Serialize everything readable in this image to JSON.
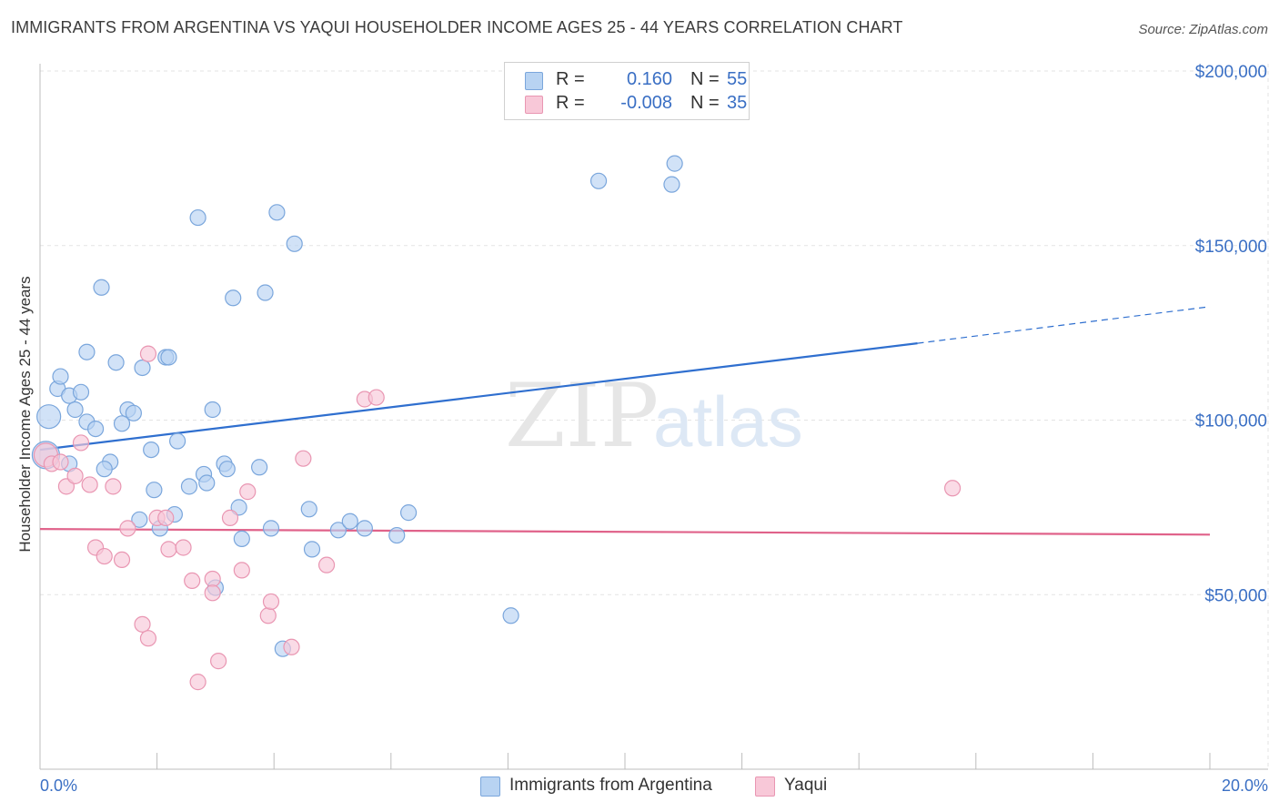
{
  "title": "IMMIGRANTS FROM ARGENTINA VS YAQUI HOUSEHOLDER INCOME AGES 25 - 44 YEARS CORRELATION CHART",
  "source": "Source: ZipAtlas.com",
  "watermark": {
    "zip": "ZIP",
    "atlas": "atlas"
  },
  "colors": {
    "blue_fill": "#b8d3f2",
    "blue_stroke": "#7aa6dc",
    "blue_line": "#2f6fcf",
    "pink_fill": "#f8c8d8",
    "pink_stroke": "#e996b2",
    "pink_line": "#e0628a",
    "axis_label": "#3a6fc4",
    "grid": "#e3e3e3"
  },
  "legend_top": {
    "rows": [
      {
        "r_label": "R =",
        "r_value": "0.160",
        "n_label": "N =",
        "n_value": "55"
      },
      {
        "r_label": "R =",
        "r_value": "-0.008",
        "n_label": "N =",
        "n_value": "35"
      }
    ]
  },
  "legend_bottom": {
    "series1": "Immigrants from Argentina",
    "series2": "Yaqui"
  },
  "chart_data": {
    "type": "scatter",
    "ylabel": "Householder Income Ages 25 - 44 years",
    "x_range": [
      0,
      20
    ],
    "y_range": [
      0,
      205000
    ],
    "x_tick_labels": [
      "0.0%",
      "20.0%"
    ],
    "y_ticks": [
      50000,
      100000,
      150000,
      200000
    ],
    "y_tick_labels": [
      "$50,000",
      "$100,000",
      "$150,000",
      "$200,000"
    ],
    "series": [
      {
        "name": "Immigrants from Argentina",
        "color": "blue",
        "points": [
          {
            "x": 0.15,
            "y": 101000,
            "s": 13
          },
          {
            "x": 0.3,
            "y": 109000
          },
          {
            "x": 0.35,
            "y": 112500
          },
          {
            "x": 0.5,
            "y": 107000
          },
          {
            "x": 0.7,
            "y": 108000
          },
          {
            "x": 0.6,
            "y": 103000
          },
          {
            "x": 0.8,
            "y": 99500
          },
          {
            "x": 0.95,
            "y": 97500
          },
          {
            "x": 0.8,
            "y": 119500
          },
          {
            "x": 1.05,
            "y": 138000
          },
          {
            "x": 1.3,
            "y": 116500
          },
          {
            "x": 1.5,
            "y": 103000
          },
          {
            "x": 1.6,
            "y": 102000
          },
          {
            "x": 1.4,
            "y": 99000
          },
          {
            "x": 1.2,
            "y": 88000
          },
          {
            "x": 1.1,
            "y": 86000
          },
          {
            "x": 1.75,
            "y": 115000
          },
          {
            "x": 2.15,
            "y": 118000
          },
          {
            "x": 2.2,
            "y": 118000
          },
          {
            "x": 1.9,
            "y": 91500
          },
          {
            "x": 1.95,
            "y": 80000
          },
          {
            "x": 2.35,
            "y": 94000
          },
          {
            "x": 2.7,
            "y": 158000
          },
          {
            "x": 2.55,
            "y": 81000
          },
          {
            "x": 2.8,
            "y": 84500
          },
          {
            "x": 2.85,
            "y": 82000
          },
          {
            "x": 2.95,
            "y": 103000
          },
          {
            "x": 3.15,
            "y": 87500
          },
          {
            "x": 3.2,
            "y": 86000
          },
          {
            "x": 3.3,
            "y": 135000
          },
          {
            "x": 3.4,
            "y": 75000
          },
          {
            "x": 3.45,
            "y": 66000
          },
          {
            "x": 3.75,
            "y": 86500
          },
          {
            "x": 3.85,
            "y": 136500
          },
          {
            "x": 4.05,
            "y": 159500
          },
          {
            "x": 3.95,
            "y": 69000
          },
          {
            "x": 4.35,
            "y": 150500
          },
          {
            "x": 4.6,
            "y": 74500
          },
          {
            "x": 4.65,
            "y": 63000
          },
          {
            "x": 5.1,
            "y": 68500
          },
          {
            "x": 5.3,
            "y": 71000
          },
          {
            "x": 5.55,
            "y": 69000
          },
          {
            "x": 6.1,
            "y": 67000
          },
          {
            "x": 6.3,
            "y": 73500
          },
          {
            "x": 1.7,
            "y": 71500
          },
          {
            "x": 2.05,
            "y": 69000
          },
          {
            "x": 2.3,
            "y": 73000
          },
          {
            "x": 3.0,
            "y": 52000
          },
          {
            "x": 4.15,
            "y": 34500
          },
          {
            "x": 8.05,
            "y": 44000
          },
          {
            "x": 9.55,
            "y": 168500
          },
          {
            "x": 10.8,
            "y": 167500
          },
          {
            "x": 10.85,
            "y": 173500
          },
          {
            "x": 0.1,
            "y": 90000,
            "s": 15
          },
          {
            "x": 0.5,
            "y": 87500
          }
        ]
      },
      {
        "name": "Yaqui",
        "color": "pink",
        "points": [
          {
            "x": 0.1,
            "y": 90000,
            "s": 13
          },
          {
            "x": 0.2,
            "y": 87500
          },
          {
            "x": 0.35,
            "y": 88000
          },
          {
            "x": 0.45,
            "y": 81000
          },
          {
            "x": 0.6,
            "y": 84000
          },
          {
            "x": 0.7,
            "y": 93500
          },
          {
            "x": 0.85,
            "y": 81500
          },
          {
            "x": 1.25,
            "y": 81000
          },
          {
            "x": 0.95,
            "y": 63500
          },
          {
            "x": 1.1,
            "y": 61000
          },
          {
            "x": 1.4,
            "y": 60000
          },
          {
            "x": 1.5,
            "y": 69000
          },
          {
            "x": 1.75,
            "y": 41500
          },
          {
            "x": 1.85,
            "y": 119000
          },
          {
            "x": 1.85,
            "y": 37500
          },
          {
            "x": 2.0,
            "y": 72000
          },
          {
            "x": 2.15,
            "y": 72000
          },
          {
            "x": 2.2,
            "y": 63000
          },
          {
            "x": 2.45,
            "y": 63500
          },
          {
            "x": 2.6,
            "y": 54000
          },
          {
            "x": 2.7,
            "y": 25000
          },
          {
            "x": 2.95,
            "y": 54500
          },
          {
            "x": 2.95,
            "y": 50500
          },
          {
            "x": 3.05,
            "y": 31000
          },
          {
            "x": 3.25,
            "y": 72000
          },
          {
            "x": 3.45,
            "y": 57000
          },
          {
            "x": 3.55,
            "y": 79500
          },
          {
            "x": 3.9,
            "y": 44000
          },
          {
            "x": 3.95,
            "y": 48000
          },
          {
            "x": 4.3,
            "y": 35000
          },
          {
            "x": 4.5,
            "y": 89000
          },
          {
            "x": 4.9,
            "y": 58500
          },
          {
            "x": 5.55,
            "y": 106000
          },
          {
            "x": 5.75,
            "y": 106500
          },
          {
            "x": 15.6,
            "y": 80500
          }
        ]
      }
    ],
    "trend_lines": [
      {
        "series": "Immigrants from Argentina",
        "x0": 0,
        "y0": 91500,
        "x1": 15.0,
        "y1": 122000,
        "dashed_to_x": 20,
        "dashed_to_y": 132500
      },
      {
        "series": "Yaqui",
        "x0": 0,
        "y0": 68800,
        "x1": 20,
        "y1": 67200
      }
    ]
  }
}
